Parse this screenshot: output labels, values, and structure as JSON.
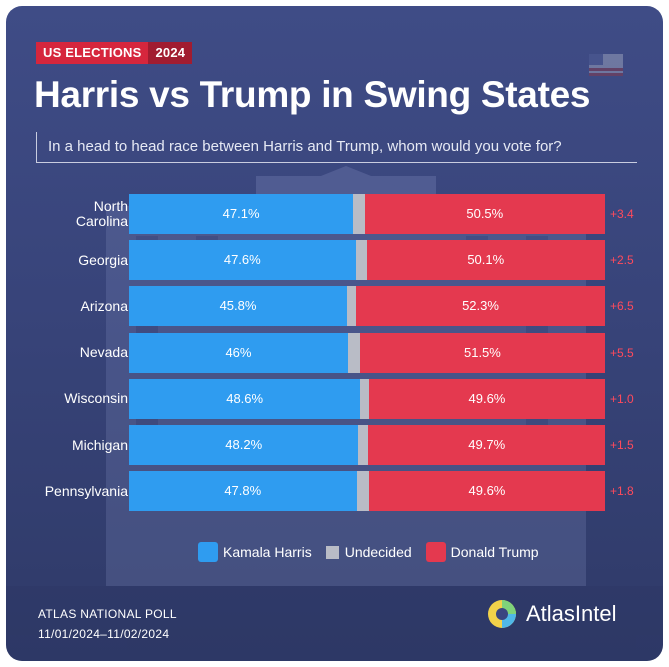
{
  "header": {
    "tag_left": "US ELECTIONS",
    "tag_right": "2024",
    "title": "Harris vs Trump in Swing States",
    "subtitle": "In a head to head race between Harris and Trump, whom would you vote for?"
  },
  "chart_data": {
    "type": "bar",
    "orientation": "horizontal",
    "stacked": true,
    "title": "Harris vs Trump in Swing States",
    "subtitle": "In a head to head race between Harris and Trump, whom would you vote for?",
    "categories": [
      "North Carolina",
      "Georgia",
      "Arizona",
      "Nevada",
      "Wisconsin",
      "Michigan",
      "Pennsylvania"
    ],
    "series": [
      {
        "name": "Kamala Harris",
        "color": "#2f9cf0",
        "values": [
          47.1,
          47.6,
          45.8,
          46,
          48.6,
          48.2,
          47.8
        ],
        "labels": [
          "47.1%",
          "47.6%",
          "45.8%",
          "46%",
          "48.6%",
          "48.2%",
          "47.8%"
        ]
      },
      {
        "name": "Undecided",
        "color": "#b9bcc6",
        "values": [
          2.4,
          2.3,
          1.9,
          2.5,
          1.8,
          2.1,
          2.6
        ]
      },
      {
        "name": "Donald Trump",
        "color": "#e4394f",
        "values": [
          50.5,
          50.1,
          52.3,
          51.5,
          49.6,
          49.7,
          49.6
        ],
        "labels": [
          "50.5%",
          "50.1%",
          "52.3%",
          "51.5%",
          "49.6%",
          "49.7%",
          "49.6%"
        ]
      }
    ],
    "margins": [
      "+3.4",
      "+2.5",
      "+6.5",
      "+5.5",
      "+1.0",
      "+1.5",
      "+1.8"
    ],
    "xlim": [
      0,
      100
    ],
    "legend": [
      "Kamala Harris",
      "Undecided",
      "Donald Trump"
    ],
    "legend_position": "bottom"
  },
  "legend": {
    "harris": "Kamala Harris",
    "undecided": "Undecided",
    "trump": "Donald Trump"
  },
  "footer": {
    "poll_name": "ATLAS NATIONAL POLL",
    "poll_dates": "11/01/2024–11/02/2024",
    "brand": "AtlasIntel"
  },
  "colors": {
    "harris": "#2f9cf0",
    "trump": "#e4394f",
    "undecided": "#b9bcc6",
    "background": "#3a4680",
    "accent_red": "#d6263d"
  }
}
